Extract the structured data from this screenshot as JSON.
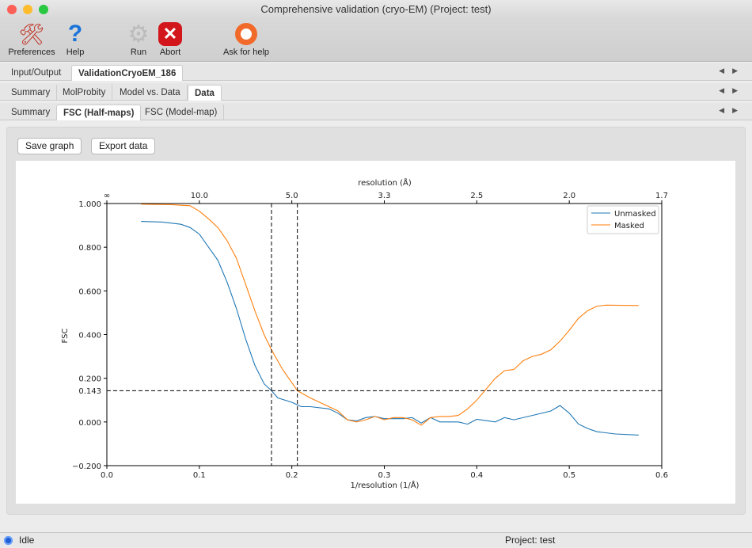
{
  "window": {
    "title": "Comprehensive validation (cryo-EM) (Project: test)"
  },
  "toolbar": {
    "items": [
      {
        "label": "Preferences",
        "icon": "wrench-screwdriver-icon"
      },
      {
        "label": "Help",
        "icon": "question-icon"
      },
      {
        "label": "Run",
        "icon": "gear-icon"
      },
      {
        "label": "Abort",
        "icon": "stop-x-icon"
      },
      {
        "label": "Ask for help",
        "icon": "lifebuoy-icon"
      }
    ]
  },
  "tabs1": [
    "Input/Output",
    "ValidationCryoEM_186"
  ],
  "tabs2": [
    "Summary",
    "MolProbity",
    "Model vs. Data",
    "Data"
  ],
  "tabs3": [
    "Summary",
    "FSC (Half-maps)",
    "FSC (Model-map)"
  ],
  "buttons": {
    "save": "Save graph",
    "export": "Export data"
  },
  "status": {
    "state": "Idle",
    "project": "Project: test",
    "indicator_color": "#1f5fd1"
  },
  "chart_data": {
    "type": "line",
    "xlabel": "1/resolution (1/Å)",
    "ylabel": "FSC",
    "top_xlabel": "resolution (Å)",
    "xlim": [
      0,
      0.6
    ],
    "ylim": [
      -0.2,
      1.0
    ],
    "xticks": [
      "0.0",
      "0.1",
      "0.2",
      "0.3",
      "0.4",
      "0.5",
      "0.6"
    ],
    "yticks": [
      "-0.200",
      "0.000",
      "0.200",
      "0.400",
      "0.600",
      "0.800",
      "1.000"
    ],
    "top_xticks": [
      "∞",
      "10.0",
      "5.0",
      "3.3",
      "2.5",
      "2.0",
      "1.7"
    ],
    "threshold": {
      "y": 0.143,
      "label": "0.143"
    },
    "vlines": [
      0.178,
      0.206
    ],
    "legend": "top-right",
    "series": [
      {
        "name": "Unmasked",
        "color": "#1f77b4",
        "x": [
          0.037,
          0.06,
          0.08,
          0.09,
          0.1,
          0.11,
          0.12,
          0.13,
          0.14,
          0.15,
          0.16,
          0.17,
          0.178,
          0.185,
          0.2,
          0.21,
          0.22,
          0.24,
          0.25,
          0.26,
          0.27,
          0.28,
          0.29,
          0.3,
          0.32,
          0.33,
          0.34,
          0.35,
          0.36,
          0.38,
          0.39,
          0.4,
          0.42,
          0.43,
          0.44,
          0.46,
          0.48,
          0.49,
          0.5,
          0.51,
          0.52,
          0.53,
          0.55,
          0.575
        ],
        "y": [
          0.918,
          0.915,
          0.905,
          0.89,
          0.86,
          0.8,
          0.74,
          0.64,
          0.52,
          0.38,
          0.26,
          0.175,
          0.143,
          0.11,
          0.09,
          0.07,
          0.07,
          0.06,
          0.04,
          0.01,
          0.005,
          0.02,
          0.025,
          0.015,
          0.015,
          0.02,
          -0.005,
          0.02,
          0.0,
          0.0,
          -0.01,
          0.012,
          0.0,
          0.02,
          0.01,
          0.03,
          0.05,
          0.075,
          0.04,
          -0.01,
          -0.03,
          -0.045,
          -0.055,
          -0.06
        ]
      },
      {
        "name": "Masked",
        "color": "#ff7f0e",
        "x": [
          0.037,
          0.07,
          0.09,
          0.1,
          0.11,
          0.12,
          0.13,
          0.14,
          0.15,
          0.16,
          0.17,
          0.178,
          0.19,
          0.2,
          0.206,
          0.22,
          0.24,
          0.25,
          0.26,
          0.27,
          0.28,
          0.29,
          0.3,
          0.31,
          0.32,
          0.33,
          0.34,
          0.35,
          0.36,
          0.37,
          0.38,
          0.39,
          0.4,
          0.41,
          0.42,
          0.43,
          0.44,
          0.45,
          0.46,
          0.47,
          0.48,
          0.49,
          0.5,
          0.51,
          0.52,
          0.53,
          0.54,
          0.575
        ],
        "y": [
          0.997,
          0.995,
          0.99,
          0.965,
          0.93,
          0.89,
          0.83,
          0.75,
          0.63,
          0.51,
          0.4,
          0.33,
          0.24,
          0.18,
          0.143,
          0.11,
          0.07,
          0.05,
          0.01,
          0.0,
          0.01,
          0.025,
          0.01,
          0.02,
          0.02,
          0.01,
          -0.015,
          0.02,
          0.025,
          0.025,
          0.03,
          0.06,
          0.1,
          0.15,
          0.2,
          0.235,
          0.24,
          0.28,
          0.3,
          0.31,
          0.33,
          0.37,
          0.42,
          0.475,
          0.51,
          0.53,
          0.535,
          0.533
        ]
      }
    ]
  }
}
